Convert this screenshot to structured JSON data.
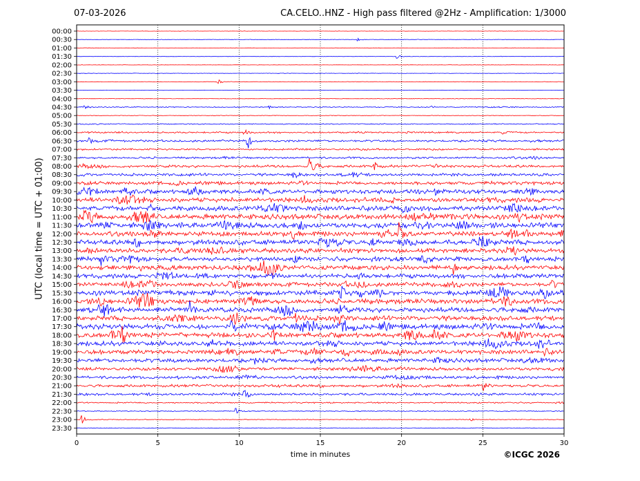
{
  "header": {
    "date": "07-03-2026",
    "title": "CA.CELO..HNZ - High pass filtered @2Hz - Amplification: 1/3000"
  },
  "footer": {
    "copyright": "©ICGC 2026"
  },
  "colors": {
    "trace_a": "#ff0000",
    "trace_b": "#0000ff",
    "grid": "#000000"
  },
  "chart_data": {
    "type": "line",
    "title": "CA.CELO..HNZ - High pass filtered @2Hz - Amplification: 1/3000",
    "xlabel": "time in minutes",
    "ylabel": "UTC (local time = UTC + 01:00)",
    "xlim": [
      0,
      30
    ],
    "x_ticks": [
      0,
      5,
      10,
      15,
      20,
      25,
      30
    ],
    "vertical_grid": "dotted at every 5 minutes",
    "y_ticks": [
      "00:00",
      "00:30",
      "01:00",
      "01:30",
      "02:00",
      "02:30",
      "03:00",
      "03:30",
      "04:00",
      "04:30",
      "05:00",
      "05:30",
      "06:00",
      "06:30",
      "07:00",
      "07:30",
      "08:00",
      "08:30",
      "09:00",
      "09:30",
      "10:00",
      "10:30",
      "11:00",
      "11:30",
      "12:00",
      "12:30",
      "13:00",
      "13:30",
      "14:00",
      "14:30",
      "15:00",
      "15:30",
      "16:00",
      "16:30",
      "17:00",
      "17:30",
      "18:00",
      "18:30",
      "19:00",
      "19:30",
      "20:00",
      "20:30",
      "21:00",
      "21:30",
      "22:00",
      "22:30",
      "23:00",
      "23:30"
    ],
    "trace_colors": "alternating red (hour) / blue (half hour)",
    "noise_level": [
      0.3,
      0.4,
      0.4,
      0.4,
      0.3,
      0.4,
      0.4,
      0.3,
      0.4,
      0.9,
      0.5,
      0.9,
      1.5,
      2.0,
      1.8,
      1.8,
      2.5,
      2.5,
      3.0,
      3.8,
      4.2,
      4.5,
      5.0,
      4.8,
      4.4,
      4.6,
      4.3,
      4.0,
      4.2,
      4.0,
      3.8,
      5.0,
      4.6,
      4.6,
      4.4,
      5.0,
      4.6,
      4.2,
      4.0,
      3.8,
      3.0,
      2.6,
      2.6,
      2.2,
      1.2,
      0.8,
      0.7,
      0.4
    ],
    "events": [
      {
        "row": "00:30",
        "minute": 17.3,
        "amplitude": 2.0
      },
      {
        "row": "01:30",
        "minute": 19.7,
        "amplitude": 3.0
      },
      {
        "row": "03:00",
        "minute": 8.7,
        "amplitude": 3.5
      },
      {
        "row": "04:30",
        "minute": 0.5,
        "amplitude": 2.5
      },
      {
        "row": "04:30",
        "minute": 11.8,
        "amplitude": 3.0
      },
      {
        "row": "04:30",
        "minute": 21.8,
        "amplitude": 3.0
      },
      {
        "row": "06:00",
        "minute": 10.3,
        "amplitude": 5.0
      },
      {
        "row": "06:00",
        "minute": 26.2,
        "amplitude": 4.0
      },
      {
        "row": "06:30",
        "minute": 10.5,
        "amplitude": 13.0
      },
      {
        "row": "06:30",
        "minute": 0.8,
        "amplitude": 4.0
      },
      {
        "row": "08:00",
        "minute": 14.3,
        "amplitude": 11.0
      },
      {
        "row": "08:00",
        "minute": 18.3,
        "amplitude": 8.0
      },
      {
        "row": "08:30",
        "minute": 13.3,
        "amplitude": 9.0
      },
      {
        "row": "09:30",
        "minute": 22.0,
        "amplitude": 7.0
      },
      {
        "row": "11:00",
        "minute": 0.5,
        "amplitude": 7.0
      },
      {
        "row": "12:00",
        "minute": 19.8,
        "amplitude": 18.0
      },
      {
        "row": "12:00",
        "minute": 13.3,
        "amplitude": 10.0
      },
      {
        "row": "13:30",
        "minute": 1.5,
        "amplitude": 8.0
      },
      {
        "row": "14:00",
        "minute": 23.2,
        "amplitude": 9.0
      },
      {
        "row": "15:00",
        "minute": 29.2,
        "amplitude": 7.0
      },
      {
        "row": "16:30",
        "minute": 7.0,
        "amplitude": 10.0
      },
      {
        "row": "17:00",
        "minute": 13.5,
        "amplitude": 10.0
      },
      {
        "row": "17:30",
        "minute": 9.5,
        "amplitude": 9.0
      },
      {
        "row": "18:00",
        "minute": 2.8,
        "amplitude": 11.0
      },
      {
        "row": "19:00",
        "minute": 28.8,
        "amplitude": 5.0
      },
      {
        "row": "19:30",
        "minute": 11.0,
        "amplitude": 7.0
      },
      {
        "row": "21:00",
        "minute": 25.0,
        "amplitude": 7.0
      },
      {
        "row": "21:30",
        "minute": 10.3,
        "amplitude": 9.0
      },
      {
        "row": "22:30",
        "minute": 9.8,
        "amplitude": 4.0
      },
      {
        "row": "23:00",
        "minute": 0.3,
        "amplitude": 7.0
      },
      {
        "row": "23:00",
        "minute": 24.2,
        "amplitude": 3.0
      }
    ]
  }
}
